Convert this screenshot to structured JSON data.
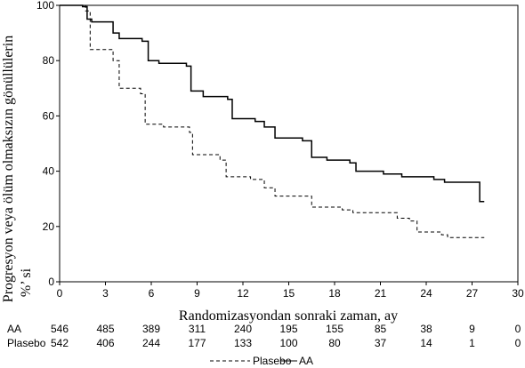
{
  "chart_data": {
    "type": "line",
    "title": "",
    "xlabel": "Randomizasyondan sonraki zaman, ay",
    "ylabel_line1": "Progresyon veya ölüm olmaksızın gönüllülerin",
    "ylabel_line2": "%’ si",
    "xlim": [
      0,
      30
    ],
    "ylim": [
      0,
      100
    ],
    "xticks": [
      0,
      3,
      6,
      9,
      12,
      15,
      18,
      21,
      24,
      27,
      30
    ],
    "yticks": [
      0,
      20,
      40,
      60,
      80,
      100
    ],
    "grid": false,
    "legend_position": "bottom-center",
    "series": [
      {
        "name": "AA",
        "style": "solid",
        "points": [
          [
            0,
            100
          ],
          [
            1.5,
            99.5
          ],
          [
            1.8,
            95
          ],
          [
            2.1,
            94
          ],
          [
            3.5,
            90
          ],
          [
            3.9,
            88
          ],
          [
            5.4,
            87
          ],
          [
            5.8,
            80
          ],
          [
            6.5,
            79
          ],
          [
            8.3,
            78
          ],
          [
            8.6,
            69
          ],
          [
            9.4,
            67
          ],
          [
            11.0,
            66
          ],
          [
            11.3,
            59
          ],
          [
            12.8,
            58
          ],
          [
            13.4,
            56
          ],
          [
            14.1,
            52
          ],
          [
            15.9,
            51
          ],
          [
            16.5,
            45
          ],
          [
            17.5,
            44
          ],
          [
            19.0,
            43
          ],
          [
            19.4,
            40
          ],
          [
            21.2,
            39
          ],
          [
            22.4,
            38
          ],
          [
            24.5,
            37
          ],
          [
            25.2,
            36
          ],
          [
            27.5,
            36
          ],
          [
            27.5,
            29
          ],
          [
            27.8,
            29
          ]
        ]
      },
      {
        "name": "Plasebo",
        "style": "dashed",
        "points": [
          [
            0,
            100
          ],
          [
            1.7,
            98
          ],
          [
            2.0,
            84
          ],
          [
            3.5,
            80
          ],
          [
            3.9,
            70
          ],
          [
            5.3,
            68
          ],
          [
            5.6,
            57
          ],
          [
            6.8,
            56
          ],
          [
            8.5,
            54
          ],
          [
            8.7,
            46
          ],
          [
            10.5,
            44
          ],
          [
            10.9,
            38
          ],
          [
            12.5,
            37
          ],
          [
            13.4,
            34
          ],
          [
            14.1,
            31
          ],
          [
            15.5,
            31
          ],
          [
            16.5,
            27
          ],
          [
            18.5,
            26
          ],
          [
            19.2,
            25
          ],
          [
            21.2,
            25
          ],
          [
            22.1,
            23
          ],
          [
            22.9,
            22
          ],
          [
            23.4,
            18
          ],
          [
            25.0,
            17
          ],
          [
            25.4,
            16
          ],
          [
            27.8,
            16
          ]
        ]
      }
    ],
    "risk_table": {
      "rows": [
        {
          "label": "AA",
          "values": [
            "546",
            "485",
            "389",
            "311",
            "240",
            "195",
            "155",
            "85",
            "38",
            "9",
            "0"
          ]
        },
        {
          "label": "Plasebo",
          "values": [
            "542",
            "406",
            "244",
            "177",
            "133",
            "100",
            "80",
            "37",
            "14",
            "1",
            "0"
          ]
        }
      ]
    },
    "legend": [
      {
        "label": "Plasebo",
        "style": "dashed"
      },
      {
        "label": "AA",
        "style": "solid"
      }
    ]
  }
}
